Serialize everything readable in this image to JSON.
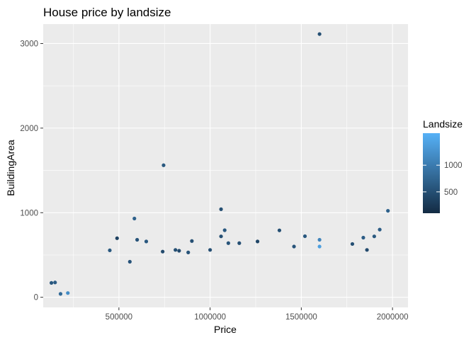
{
  "chart_data": {
    "type": "scatter",
    "title": "House price by landsize",
    "xlabel": "Price",
    "ylabel": "BuildingArea",
    "xlim": [
      85000,
      2085000
    ],
    "ylim": [
      -120,
      3230
    ],
    "x_ticks": [
      500000,
      1000000,
      1500000,
      2000000
    ],
    "x_tick_labels": [
      "500000",
      "1000000",
      "1500000",
      "2000000"
    ],
    "y_ticks": [
      0,
      1000,
      2000,
      3000
    ],
    "y_tick_labels": [
      "0",
      "1000",
      "2000",
      "3000"
    ],
    "grid": true,
    "legend": {
      "title": "Landsize",
      "position": "right",
      "range": [
        100,
        1600
      ],
      "breaks": [
        500,
        1000
      ],
      "break_labels": [
        "500",
        "1000"
      ],
      "color_low": "#132B43",
      "color_high": "#56B1F7"
    },
    "series": [
      {
        "points": [
          {
            "x": 1600000,
            "y": 3112,
            "landsize": 500
          },
          {
            "x": 745000,
            "y": 1561,
            "landsize": 600
          },
          {
            "x": 1060000,
            "y": 1041,
            "landsize": 500
          },
          {
            "x": 1975000,
            "y": 1022,
            "landsize": 700
          },
          {
            "x": 585000,
            "y": 931,
            "landsize": 700
          },
          {
            "x": 1080000,
            "y": 793,
            "landsize": 600
          },
          {
            "x": 1930000,
            "y": 800,
            "landsize": 650
          },
          {
            "x": 1380000,
            "y": 791,
            "landsize": 500
          },
          {
            "x": 490000,
            "y": 698,
            "landsize": 350
          },
          {
            "x": 1520000,
            "y": 722,
            "landsize": 600
          },
          {
            "x": 1060000,
            "y": 720,
            "landsize": 500
          },
          {
            "x": 1840000,
            "y": 705,
            "landsize": 650
          },
          {
            "x": 600000,
            "y": 680,
            "landsize": 550
          },
          {
            "x": 1600000,
            "y": 680,
            "landsize": 1100
          },
          {
            "x": 650000,
            "y": 660,
            "landsize": 600
          },
          {
            "x": 900000,
            "y": 665,
            "landsize": 500
          },
          {
            "x": 1260000,
            "y": 660,
            "landsize": 400
          },
          {
            "x": 1900000,
            "y": 720,
            "landsize": 600
          },
          {
            "x": 1100000,
            "y": 640,
            "landsize": 550
          },
          {
            "x": 1160000,
            "y": 640,
            "landsize": 500
          },
          {
            "x": 450000,
            "y": 555,
            "landsize": 600
          },
          {
            "x": 740000,
            "y": 540,
            "landsize": 450
          },
          {
            "x": 810000,
            "y": 560,
            "landsize": 500
          },
          {
            "x": 830000,
            "y": 550,
            "landsize": 450
          },
          {
            "x": 880000,
            "y": 530,
            "landsize": 550
          },
          {
            "x": 1000000,
            "y": 560,
            "landsize": 500
          },
          {
            "x": 1460000,
            "y": 600,
            "landsize": 550
          },
          {
            "x": 1780000,
            "y": 630,
            "landsize": 500
          },
          {
            "x": 1860000,
            "y": 560,
            "landsize": 450
          },
          {
            "x": 1600000,
            "y": 600,
            "landsize": 1400
          },
          {
            "x": 560000,
            "y": 420,
            "landsize": 550
          },
          {
            "x": 130000,
            "y": 170,
            "landsize": 600
          },
          {
            "x": 150000,
            "y": 175,
            "landsize": 650
          },
          {
            "x": 180000,
            "y": 40,
            "landsize": 800
          },
          {
            "x": 220000,
            "y": 50,
            "landsize": 1200
          }
        ]
      }
    ]
  }
}
